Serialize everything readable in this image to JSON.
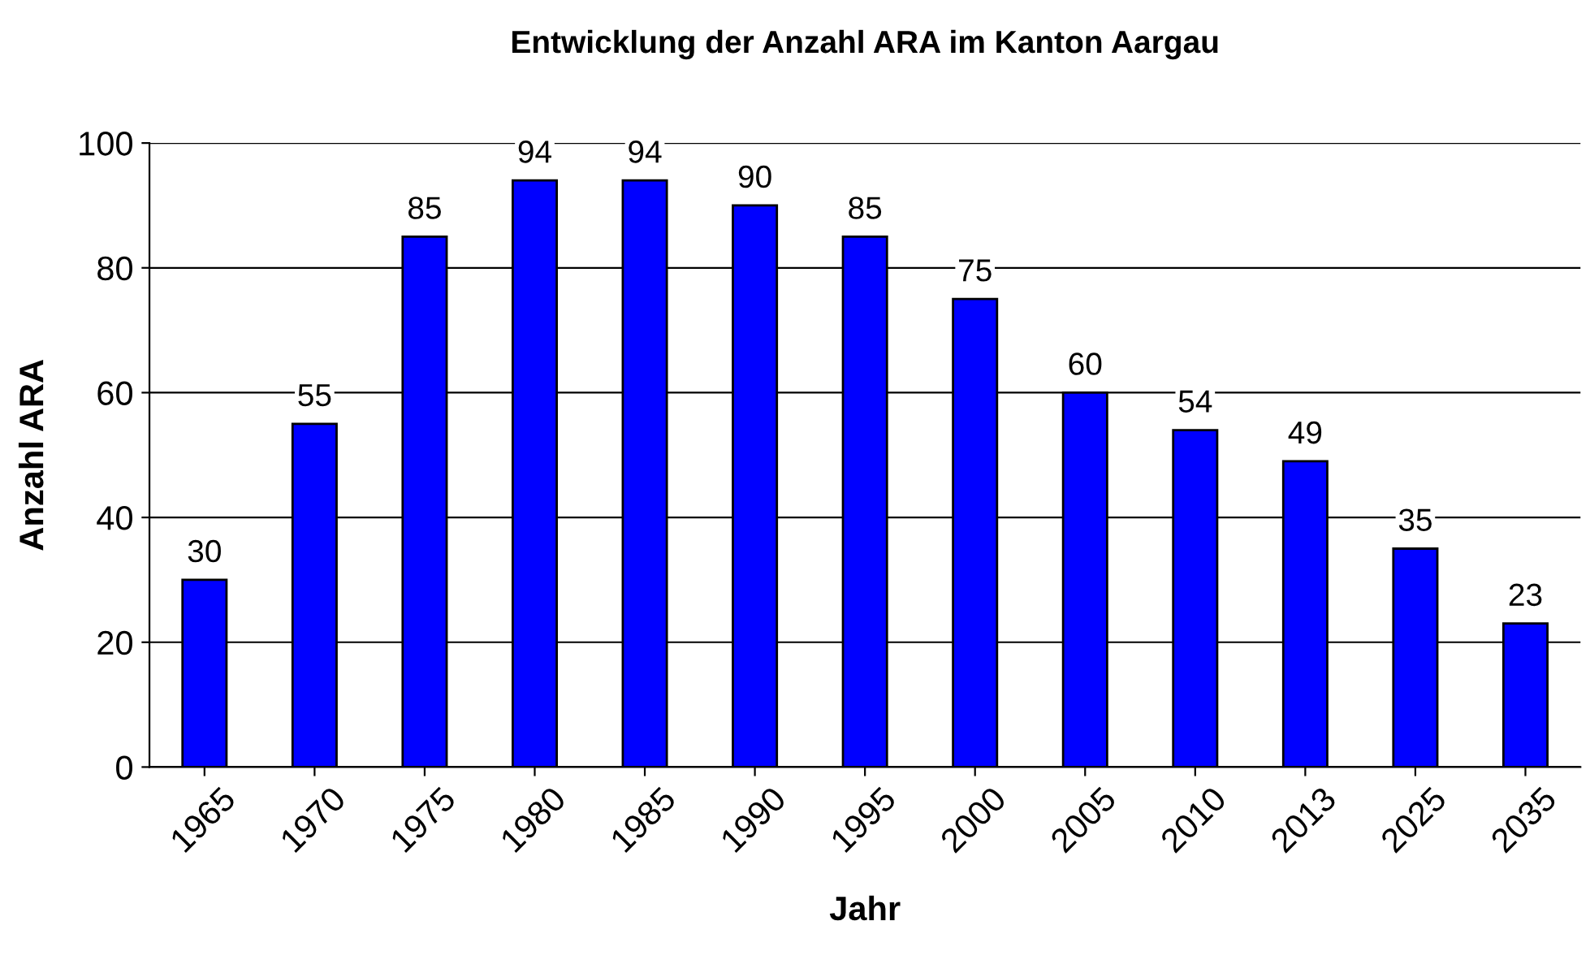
{
  "chart_data": {
    "type": "bar",
    "title": "Entwicklung der Anzahl ARA im Kanton Aargau",
    "xlabel": "Jahr",
    "ylabel": "Anzahl ARA",
    "categories": [
      "1965",
      "1970",
      "1975",
      "1980",
      "1985",
      "1990",
      "1995",
      "2000",
      "2005",
      "2010",
      "2013",
      "2025",
      "2035"
    ],
    "values": [
      30,
      55,
      85,
      94,
      94,
      90,
      85,
      75,
      60,
      54,
      49,
      35,
      23
    ],
    "color": "#0000ff",
    "ylim": [
      0,
      100
    ],
    "yticks": [
      0,
      20,
      40,
      60,
      80,
      100
    ],
    "grid": "y",
    "data_labels": true,
    "legend": false
  }
}
